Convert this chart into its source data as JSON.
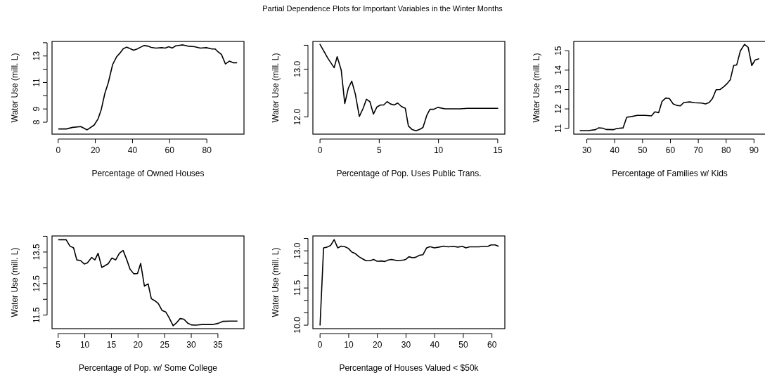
{
  "chart_data": [
    {
      "type": "line",
      "xlabel": "Percentage of Owned Houses",
      "ylabel": "Water Use (mill. L)",
      "color": "#000000",
      "xlim": [
        -3.3,
        100
      ],
      "ylim": [
        7.1,
        14.1
      ],
      "xticks": [
        0,
        20,
        40,
        60,
        80
      ],
      "yticks": [
        8,
        9,
        {
          "value": 10,
          "label": null
        },
        11,
        {
          "value": 12,
          "label": null
        },
        13,
        {
          "value": 14,
          "label": null
        }
      ],
      "x": [
        0.3,
        4.4,
        7.8,
        12.2,
        15.6,
        19.4,
        21.4,
        23.2,
        25.1,
        27,
        29.3,
        31.4,
        33.3,
        35,
        36.8,
        38.7,
        40.6,
        42.5,
        44.4,
        46.3,
        48.2,
        50.1,
        52.6,
        55.7,
        57.6,
        59.5,
        61.4,
        63.3,
        67.1,
        69.6,
        73.4,
        76.5,
        79.7,
        82.8,
        84.5,
        86,
        87.9,
        90,
        92.1,
        94.2,
        96.1
      ],
      "values": [
        7.49,
        7.49,
        7.61,
        7.67,
        7.42,
        7.79,
        8.23,
        8.96,
        10.16,
        11.0,
        12.35,
        12.93,
        13.23,
        13.54,
        13.67,
        13.56,
        13.44,
        13.53,
        13.67,
        13.79,
        13.75,
        13.65,
        13.6,
        13.63,
        13.6,
        13.7,
        13.6,
        13.77,
        13.84,
        13.75,
        13.7,
        13.6,
        13.63,
        13.53,
        13.53,
        13.32,
        13.11,
        12.4,
        12.61,
        12.49,
        12.49
      ]
    },
    {
      "type": "line",
      "title": "Partial Dependence Plots for Important Variables in the Winter Months",
      "xlabel": "Percentage of Pop. Uses Public Trans.",
      "ylabel": "Water Use (mill. L)",
      "color": "#000000",
      "xlim": [
        -0.6,
        15.6
      ],
      "ylim": [
        11.64,
        13.58
      ],
      "xticks": [
        0,
        5,
        10,
        15
      ],
      "yticks": [
        {
          "value": 12,
          "label": "12.0"
        },
        {
          "value": 12.5,
          "label": null
        },
        {
          "value": 13,
          "label": "13.0"
        },
        {
          "value": 13.5,
          "label": null
        }
      ],
      "x": [
        0,
        0.66,
        1.19,
        1.45,
        1.79,
        2.09,
        2.39,
        2.68,
        2.98,
        3.32,
        3.64,
        3.92,
        4.21,
        4.51,
        4.81,
        5.11,
        5.37,
        5.67,
        5.96,
        6.26,
        6.56,
        6.86,
        7.2,
        7.46,
        7.75,
        8.09,
        8.41,
        8.69,
        9.01,
        9.28,
        9.6,
        9.94,
        10.54,
        11.13,
        11.83,
        12.43,
        13.42,
        15
      ],
      "values": [
        13.52,
        13.23,
        13.03,
        13.26,
        12.98,
        12.28,
        12.6,
        12.75,
        12.48,
        12.01,
        12.18,
        12.37,
        12.32,
        12.06,
        12.21,
        12.25,
        12.25,
        12.32,
        12.27,
        12.25,
        12.29,
        12.22,
        12.18,
        11.81,
        11.74,
        11.71,
        11.74,
        11.78,
        12.03,
        12.16,
        12.16,
        12.2,
        12.17,
        12.17,
        12.17,
        12.18,
        12.18,
        12.18
      ]
    },
    {
      "type": "line",
      "xlabel": "Percentage of Families w/ Kids",
      "ylabel": "Water Use (mill. L)",
      "color": "#000000",
      "xlim": [
        25.3,
        94.2
      ],
      "ylim": [
        10.7,
        15.48
      ],
      "xticks": [
        30,
        40,
        50,
        60,
        70,
        80,
        90
      ],
      "yticks": [
        11,
        12,
        13,
        14,
        15
      ],
      "x": [
        27.6,
        30.6,
        33.1,
        34.2,
        35.7,
        36.9,
        39.5,
        40.7,
        43,
        44.3,
        46.2,
        48.1,
        50.9,
        53.2,
        54.4,
        55.8,
        57,
        58.3,
        59.6,
        61,
        62.3,
        63.6,
        64.8,
        66.9,
        68.6,
        71.2,
        72.6,
        73.9,
        75.1,
        76.4,
        77.8,
        79.2,
        80.5,
        81.5,
        82.7,
        83.8,
        85.1,
        86.6,
        87.9,
        89.2,
        90.4,
        91.7
      ],
      "values": [
        10.88,
        10.88,
        10.93,
        11.02,
        11.01,
        10.94,
        10.93,
        10.99,
        11.02,
        11.57,
        11.61,
        11.67,
        11.67,
        11.64,
        11.85,
        11.81,
        12.39,
        12.56,
        12.54,
        12.26,
        12.18,
        12.16,
        12.33,
        12.36,
        12.32,
        12.3,
        12.26,
        12.33,
        12.54,
        12.99,
        13.0,
        13.15,
        13.33,
        13.51,
        14.24,
        14.27,
        14.99,
        15.33,
        15.18,
        14.24,
        14.52,
        14.58
      ]
    },
    {
      "type": "line",
      "xlabel": "Percentage of Pop. w/ Some College",
      "ylabel": "Water Use (mill. L)",
      "color": "#000000",
      "xlim": [
        3.85,
        39.9
      ],
      "ylim": [
        11.07,
        14.01
      ],
      "xticks": [
        5,
        10,
        15,
        20,
        25,
        30,
        35
      ],
      "yticks": [
        11.5,
        {
          "value": 12,
          "label": null
        },
        12.5,
        {
          "value": 13,
          "label": null
        },
        13.5,
        {
          "value": 14,
          "label": null
        }
      ],
      "x": [
        5.1,
        6.5,
        7.2,
        7.9,
        8.5,
        9.2,
        9.9,
        10.5,
        11.3,
        11.9,
        12.5,
        13.2,
        13.8,
        14.4,
        15.1,
        15.8,
        16.5,
        17.2,
        17.9,
        18.5,
        19.2,
        19.9,
        20.5,
        21.2,
        21.9,
        22.5,
        23.2,
        23.8,
        24.5,
        25.2,
        25.8,
        26.6,
        27.2,
        27.9,
        28.6,
        29.3,
        30,
        30.8,
        32,
        34,
        35.1,
        35.9,
        37.3,
        38.6
      ],
      "values": [
        13.89,
        13.89,
        13.69,
        13.63,
        13.25,
        13.23,
        13.12,
        13.16,
        13.33,
        13.25,
        13.46,
        13.01,
        13.07,
        13.13,
        13.31,
        13.25,
        13.46,
        13.55,
        13.25,
        12.96,
        12.81,
        12.82,
        13.14,
        12.42,
        12.49,
        12.02,
        11.95,
        11.87,
        11.65,
        11.6,
        11.43,
        11.16,
        11.25,
        11.39,
        11.37,
        11.25,
        11.19,
        11.18,
        11.2,
        11.2,
        11.24,
        11.3,
        11.31,
        11.31
      ]
    },
    {
      "type": "line",
      "xlabel": "Percentage of Houses Valued < $50k",
      "ylabel": "Water Use (mill. L)",
      "color": "#000000",
      "xlim": [
        -2.5,
        64.5
      ],
      "ylim": [
        9.86,
        13.6
      ],
      "xticks": [
        0,
        10,
        20,
        30,
        40,
        50,
        60
      ],
      "yticks": [
        {
          "value": 10,
          "label": "10.0"
        },
        {
          "value": 10.5,
          "label": null
        },
        {
          "value": 11,
          "label": null
        },
        11.5,
        {
          "value": 12,
          "label": null
        },
        {
          "value": 12.5,
          "label": null
        },
        {
          "value": 13,
          "label": "13.0"
        },
        {
          "value": 13.5,
          "label": null
        }
      ],
      "x": [
        0,
        1.23,
        2.47,
        3.7,
        4.93,
        6.16,
        7.4,
        8.63,
        9.86,
        11.1,
        12.3,
        13.6,
        14.8,
        16,
        17.4,
        18.7,
        19.9,
        21.4,
        22.6,
        23.8,
        24.9,
        26.3,
        27.5,
        29.2,
        30,
        31,
        32.3,
        33.4,
        34.7,
        35.9,
        37.2,
        38.4,
        39.9,
        41.5,
        43.1,
        44.8,
        46.4,
        48.1,
        49.7,
        50.9,
        52.2,
        55.5,
        57.1,
        58.6,
        59.7,
        61.1,
        62.2
      ],
      "values": [
        10.0,
        13.12,
        13.15,
        13.22,
        13.45,
        13.12,
        13.19,
        13.17,
        13.1,
        12.95,
        12.89,
        12.76,
        12.68,
        12.6,
        12.6,
        12.65,
        12.58,
        12.59,
        12.57,
        12.63,
        12.65,
        12.62,
        12.61,
        12.63,
        12.66,
        12.76,
        12.72,
        12.74,
        12.82,
        12.84,
        13.12,
        13.17,
        13.12,
        13.15,
        13.19,
        13.16,
        13.18,
        13.15,
        13.18,
        13.12,
        13.16,
        13.16,
        13.18,
        13.18,
        13.24,
        13.24,
        13.19
      ]
    }
  ]
}
